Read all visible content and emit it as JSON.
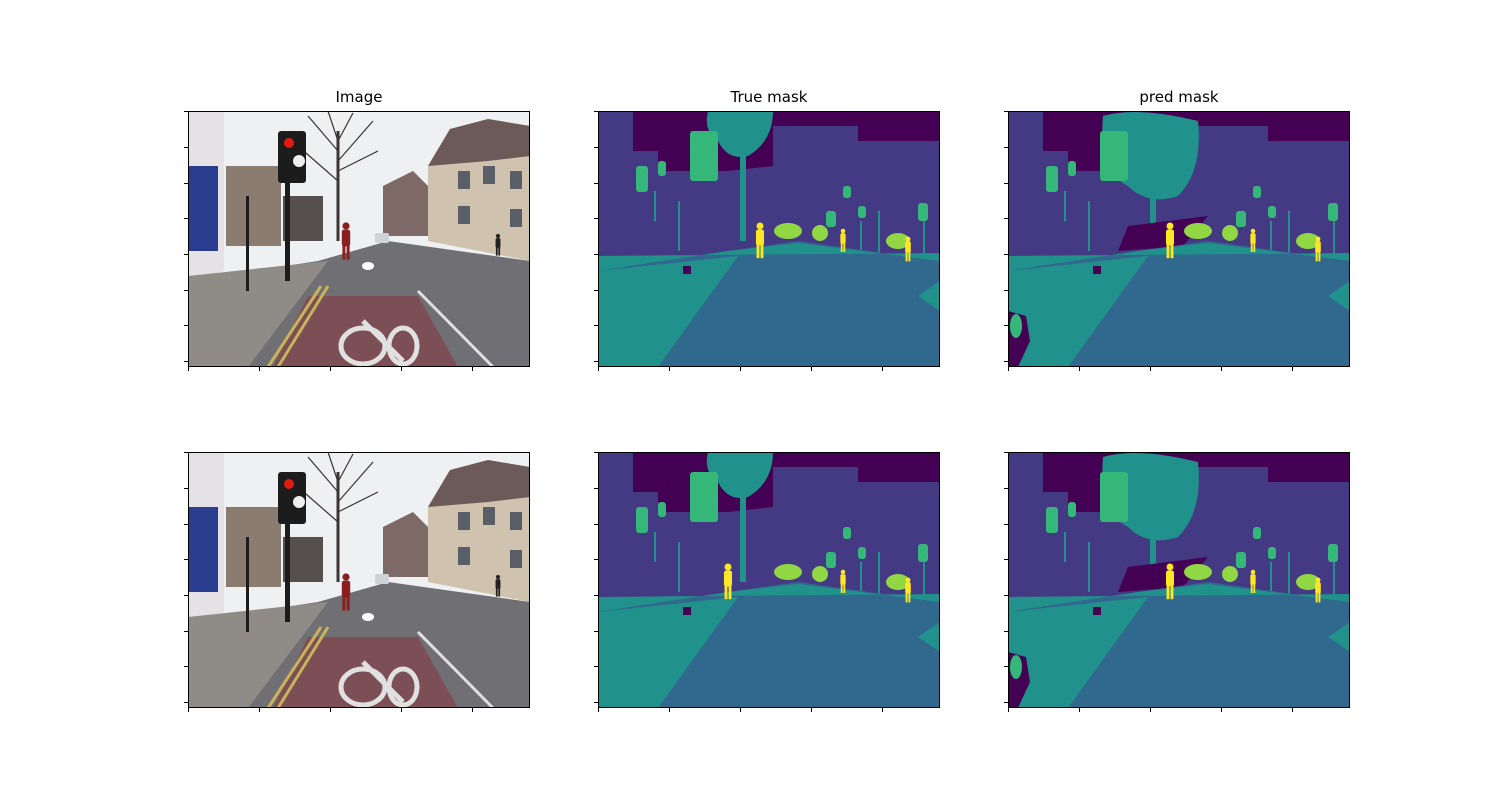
{
  "titles": [
    "Image",
    "True mask",
    "pred mask"
  ],
  "palette": {
    "c0": "#440154",
    "c1": "#443a83",
    "c2": "#31688e",
    "c3": "#21918c",
    "c4": "#35b779",
    "c5": "#90d743",
    "c6": "#fde725"
  },
  "photo_colors": {
    "sky": "#eef0f1",
    "road": "#6f6f74",
    "road_red": "#7b4f55",
    "pavement": "#8f8c88",
    "building": "#8a7c70",
    "building_light": "#cfc2ae",
    "roof": "#6b5a58",
    "shop_blue": "#2a3d8f",
    "pole": "#1c1c1c",
    "light_red": "#e11b12",
    "marking": "#e0e0e0",
    "yellow_line": "#c9b35a",
    "tree": "#3b3533"
  }
}
